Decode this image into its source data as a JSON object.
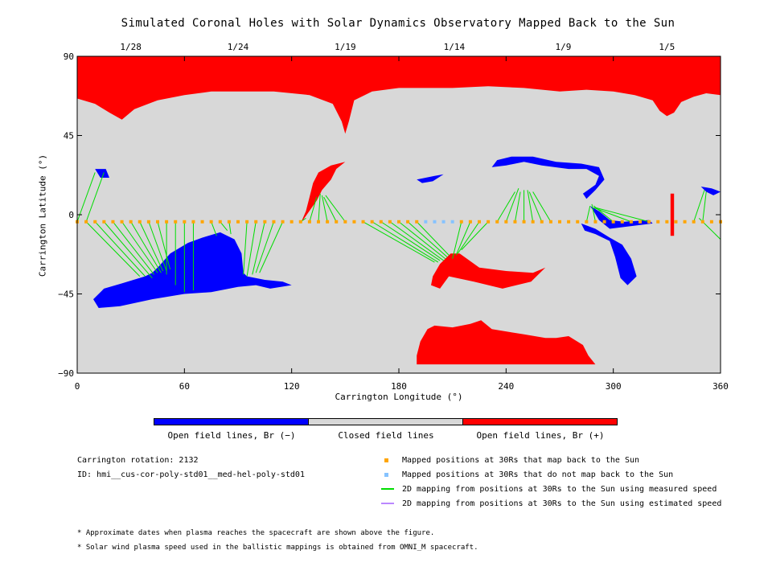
{
  "title": "Simulated Coronal Holes with Solar Dynamics Observatory Mapped Back to the Sun",
  "chart_data": {
    "type": "scatter",
    "title": "Simulated Coronal Holes with Solar Dynamics Observatory Mapped Back to the Sun",
    "xlabel": "Carrington Longitude (°)",
    "ylabel": "Carrington Latitude (°)",
    "xlim": [
      0,
      360
    ],
    "ylim": [
      -90,
      90
    ],
    "x_ticks": [
      0,
      60,
      120,
      180,
      240,
      300,
      360
    ],
    "y_ticks": [
      -90,
      -45,
      0,
      45,
      90
    ],
    "top_axis_dates": [
      {
        "label": "1/28",
        "lon": 30
      },
      {
        "label": "1/24",
        "lon": 90
      },
      {
        "label": "1/19",
        "lon": 150
      },
      {
        "label": "1/14",
        "lon": 211
      },
      {
        "label": "1/9",
        "lon": 272
      },
      {
        "label": "1/5",
        "lon": 330
      }
    ],
    "background_color": "#d8d8d8",
    "regions": [
      {
        "name": "north-polar-positive",
        "color": "#ff0000",
        "points": [
          [
            0,
            90
          ],
          [
            360,
            90
          ],
          [
            360,
            68
          ],
          [
            352,
            69
          ],
          [
            345,
            67
          ],
          [
            338,
            64
          ],
          [
            334,
            58
          ],
          [
            330,
            56
          ],
          [
            326,
            59
          ],
          [
            322,
            65
          ],
          [
            312,
            68
          ],
          [
            300,
            70
          ],
          [
            285,
            71
          ],
          [
            270,
            70
          ],
          [
            250,
            72
          ],
          [
            230,
            73
          ],
          [
            210,
            72
          ],
          [
            195,
            72
          ],
          [
            180,
            72
          ],
          [
            165,
            70
          ],
          [
            155,
            65
          ],
          [
            152,
            53
          ],
          [
            150,
            46
          ],
          [
            148,
            53
          ],
          [
            143,
            63
          ],
          [
            130,
            68
          ],
          [
            110,
            70
          ],
          [
            90,
            70
          ],
          [
            75,
            70
          ],
          [
            60,
            68
          ],
          [
            45,
            65
          ],
          [
            32,
            60
          ],
          [
            25,
            54
          ],
          [
            18,
            58
          ],
          [
            10,
            63
          ],
          [
            0,
            66
          ]
        ]
      },
      {
        "name": "south-polar-positive",
        "color": "#ff0000",
        "points": [
          [
            190,
            -85
          ],
          [
            290,
            -85
          ],
          [
            286,
            -80
          ],
          [
            283,
            -74
          ],
          [
            275,
            -69
          ],
          [
            268,
            -70
          ],
          [
            262,
            -70
          ],
          [
            250,
            -68
          ],
          [
            232,
            -65
          ],
          [
            226,
            -60
          ],
          [
            220,
            -62
          ],
          [
            210,
            -64
          ],
          [
            200,
            -63
          ],
          [
            196,
            -65
          ],
          [
            192,
            -72
          ],
          [
            190,
            -80
          ]
        ]
      },
      {
        "name": "south-hole-negative",
        "color": "#0000ff",
        "points": [
          [
            9,
            -48
          ],
          [
            12,
            -53
          ],
          [
            24,
            -52
          ],
          [
            42,
            -48
          ],
          [
            60,
            -45
          ],
          [
            75,
            -44
          ],
          [
            90,
            -41
          ],
          [
            100,
            -40
          ],
          [
            108,
            -42
          ],
          [
            120,
            -40
          ],
          [
            115,
            -38
          ],
          [
            105,
            -37
          ],
          [
            95,
            -35
          ],
          [
            93,
            -33
          ],
          [
            92,
            -22
          ],
          [
            88,
            -14
          ],
          [
            80,
            -10
          ],
          [
            70,
            -13
          ],
          [
            62,
            -16
          ],
          [
            52,
            -22
          ],
          [
            46,
            -29
          ],
          [
            42,
            -33
          ],
          [
            38,
            -35
          ],
          [
            25,
            -39
          ],
          [
            15,
            -42
          ]
        ]
      },
      {
        "name": "mid-neg-arc-west",
        "color": "#0000ff",
        "points": [
          [
            322,
            -5
          ],
          [
            306,
            -7
          ],
          [
            298,
            -8
          ],
          [
            292,
            -3
          ],
          [
            289,
            2
          ],
          [
            287,
            5
          ],
          [
            292,
            2
          ],
          [
            298,
            -3
          ],
          [
            306,
            -4
          ],
          [
            320,
            -3
          ]
        ]
      },
      {
        "name": "equatorial-neg-northeast",
        "color": "#0000ff",
        "points": [
          [
            232,
            27
          ],
          [
            240,
            28
          ],
          [
            250,
            30
          ],
          [
            260,
            28
          ],
          [
            275,
            26
          ],
          [
            285,
            26
          ],
          [
            292,
            22
          ],
          [
            290,
            17
          ],
          [
            283,
            12
          ],
          [
            285,
            9
          ],
          [
            290,
            14
          ],
          [
            295,
            20
          ],
          [
            292,
            27
          ],
          [
            282,
            29
          ],
          [
            268,
            30
          ],
          [
            255,
            33
          ],
          [
            243,
            33
          ],
          [
            235,
            31
          ]
        ]
      },
      {
        "name": "south-neg-tail",
        "color": "#0000ff",
        "points": [
          [
            282,
            -5
          ],
          [
            290,
            -8
          ],
          [
            298,
            -13
          ],
          [
            305,
            -17
          ],
          [
            310,
            -25
          ],
          [
            313,
            -35
          ],
          [
            308,
            -40
          ],
          [
            304,
            -36
          ],
          [
            301,
            -24
          ],
          [
            298,
            -15
          ],
          [
            290,
            -11
          ],
          [
            284,
            -9
          ]
        ]
      },
      {
        "name": "small-neg-east",
        "color": "#0000ff",
        "points": [
          [
            349,
            16
          ],
          [
            355,
            15
          ],
          [
            360,
            13
          ],
          [
            356,
            11
          ],
          [
            352,
            13
          ]
        ]
      },
      {
        "name": "small-neg-west",
        "color": "#0000ff",
        "points": [
          [
            10,
            26
          ],
          [
            16,
            26
          ],
          [
            18,
            21
          ],
          [
            13,
            21
          ]
        ]
      },
      {
        "name": "mid-neg-tongue",
        "color": "#0000ff",
        "points": [
          [
            190,
            20
          ],
          [
            200,
            22
          ],
          [
            205,
            23
          ],
          [
            199,
            19
          ],
          [
            193,
            18
          ]
        ]
      },
      {
        "name": "positive-tongue-north",
        "color": "#ff0000",
        "points": [
          [
            125,
            -5
          ],
          [
            128,
            2
          ],
          [
            130,
            10
          ],
          [
            132,
            18
          ],
          [
            135,
            24
          ],
          [
            142,
            28
          ],
          [
            150,
            30
          ],
          [
            145,
            26
          ],
          [
            142,
            20
          ],
          [
            137,
            14
          ],
          [
            134,
            8
          ]
        ]
      },
      {
        "name": "positive-hole-south-mid",
        "color": "#ff0000",
        "points": [
          [
            198,
            -40
          ],
          [
            203,
            -42
          ],
          [
            208,
            -35
          ],
          [
            222,
            -38
          ],
          [
            238,
            -42
          ],
          [
            254,
            -38
          ],
          [
            262,
            -30
          ],
          [
            255,
            -33
          ],
          [
            240,
            -32
          ],
          [
            225,
            -30
          ],
          [
            214,
            -22
          ],
          [
            209,
            -22
          ],
          [
            203,
            -28
          ],
          [
            199,
            -35
          ]
        ]
      },
      {
        "name": "positive-stripe-east",
        "color": "#ff0000",
        "points": [
          [
            332,
            -12
          ],
          [
            334,
            -12
          ],
          [
            334,
            12
          ],
          [
            332,
            12
          ]
        ]
      }
    ],
    "series": [
      {
        "name": "Mapped positions at 30Rs that map back to the Sun",
        "color": "#ffa500",
        "marker": "square",
        "x": [
          0,
          5,
          10,
          15,
          20,
          25,
          30,
          35,
          40,
          45,
          50,
          55,
          60,
          65,
          70,
          75,
          80,
          85,
          90,
          95,
          100,
          105,
          110,
          115,
          120,
          125,
          130,
          135,
          140,
          145,
          150,
          155,
          160,
          165,
          170,
          175,
          180,
          185,
          190,
          215,
          220,
          225,
          230,
          235,
          240,
          245,
          250,
          255,
          260,
          265,
          270,
          275,
          280,
          285,
          290,
          295,
          300,
          305,
          310,
          315,
          320,
          325,
          330,
          335,
          340,
          345,
          350,
          355,
          360
        ],
        "y": [
          -4,
          -4,
          -4,
          -4,
          -4,
          -4,
          -4,
          -4,
          -4,
          -4,
          -4,
          -4,
          -4,
          -4,
          -4,
          -4,
          -4,
          -4,
          -4,
          -4,
          -4,
          -4,
          -4,
          -4,
          -4,
          -4,
          -4,
          -4,
          -4,
          -4,
          -4,
          -4,
          -4,
          -4,
          -4,
          -4,
          -4,
          -4,
          -4,
          -4,
          -4,
          -4,
          -4,
          -4,
          -4,
          -4,
          -4,
          -4,
          -4,
          -4,
          -4,
          -4,
          -4,
          -4,
          -4,
          -4,
          -4,
          -4,
          -4,
          -4,
          -4,
          -4,
          -4,
          -4,
          -4,
          -4,
          -4,
          -4,
          -4
        ]
      },
      {
        "name": "Mapped positions at 30Rs that do not map back to the Sun",
        "color": "#86c3ff",
        "marker": "square",
        "x": [
          195,
          200,
          205,
          210
        ],
        "y": [
          -4,
          -4,
          -4,
          -4
        ]
      }
    ],
    "mapping_lines": [
      [
        0,
        -4,
        10,
        24
      ],
      [
        5,
        -4,
        15,
        24
      ],
      [
        5,
        -4,
        35,
        -35
      ],
      [
        10,
        -4,
        38,
        -35
      ],
      [
        15,
        -4,
        42,
        -36
      ],
      [
        20,
        -4,
        43,
        -34
      ],
      [
        25,
        -4,
        45,
        -33
      ],
      [
        30,
        -4,
        47,
        -33
      ],
      [
        35,
        -4,
        48,
        -32
      ],
      [
        40,
        -4,
        50,
        -32
      ],
      [
        45,
        -4,
        52,
        -31
      ],
      [
        50,
        -4,
        50,
        -34
      ],
      [
        55,
        -4,
        55,
        -40
      ],
      [
        60,
        -4,
        60,
        -44
      ],
      [
        65,
        -4,
        65,
        -43
      ],
      [
        75,
        -4,
        78,
        -12
      ],
      [
        80,
        -4,
        84,
        -9
      ],
      [
        85,
        -4,
        86,
        -11
      ],
      [
        95,
        -4,
        93,
        -34
      ],
      [
        100,
        -4,
        95,
        -35
      ],
      [
        105,
        -4,
        98,
        -34
      ],
      [
        110,
        -4,
        100,
        -33
      ],
      [
        115,
        -4,
        102,
        -33
      ],
      [
        125,
        -4,
        128,
        -2
      ],
      [
        130,
        -4,
        134,
        10
      ],
      [
        135,
        -4,
        136,
        12
      ],
      [
        140,
        -4,
        137,
        11
      ],
      [
        145,
        -4,
        138,
        10
      ],
      [
        150,
        -4,
        139,
        11
      ],
      [
        160,
        -4,
        200,
        -27
      ],
      [
        165,
        -4,
        202,
        -27
      ],
      [
        170,
        -4,
        203,
        -26
      ],
      [
        175,
        -4,
        205,
        -26
      ],
      [
        180,
        -4,
        206,
        -25
      ],
      [
        185,
        -4,
        207,
        -24
      ],
      [
        190,
        -4,
        208,
        -23
      ],
      [
        215,
        -4,
        210,
        -25
      ],
      [
        220,
        -4,
        212,
        -23
      ],
      [
        225,
        -4,
        213,
        -22
      ],
      [
        230,
        -4,
        215,
        -20
      ],
      [
        235,
        -4,
        245,
        13
      ],
      [
        240,
        -4,
        247,
        15
      ],
      [
        245,
        -4,
        248,
        13
      ],
      [
        250,
        -4,
        250,
        14
      ],
      [
        255,
        -4,
        252,
        14
      ],
      [
        260,
        -4,
        253,
        13
      ],
      [
        265,
        -4,
        255,
        13
      ],
      [
        285,
        -4,
        287,
        5
      ],
      [
        290,
        -4,
        288,
        6
      ],
      [
        300,
        -4,
        289,
        5
      ],
      [
        310,
        -4,
        289,
        4
      ],
      [
        320,
        -4,
        290,
        4
      ],
      [
        345,
        -4,
        351,
        14
      ],
      [
        350,
        -4,
        352,
        13
      ],
      [
        360,
        -14,
        348,
        -2
      ]
    ],
    "legend": [
      {
        "label": "Mapped positions at 30Rs that map back to the Sun",
        "color": "#ffa500",
        "kind": "square"
      },
      {
        "label": "Mapped positions at 30Rs that do not map back to the Sun",
        "color": "#86c3ff",
        "kind": "square"
      },
      {
        "label": "2D mapping from positions at 30Rs to the Sun using measured speed",
        "color": "#00dd00",
        "kind": "line"
      },
      {
        "label": "2D mapping from positions at 30Rs to the Sun using estimated speed",
        "color": "#bb88ff",
        "kind": "line"
      }
    ],
    "colorbar": [
      {
        "label": "Open field lines, Br (−)",
        "color": "#0000ff"
      },
      {
        "label": "Closed field lines",
        "color": "#d8d8d8"
      },
      {
        "label": "Open field lines, Br (+)",
        "color": "#ff0000"
      }
    ]
  },
  "info": {
    "rotation": "Carrington rotation: 2132",
    "id": "ID: hmi__cus-cor-poly-std01__med-hel-poly-std01"
  },
  "notes": [
    "* Approximate dates when plasma reaches the spacecraft are shown above the figure.",
    "* Solar wind plasma speed used in the ballistic mappings is obtained from OMNI_M spacecraft."
  ]
}
